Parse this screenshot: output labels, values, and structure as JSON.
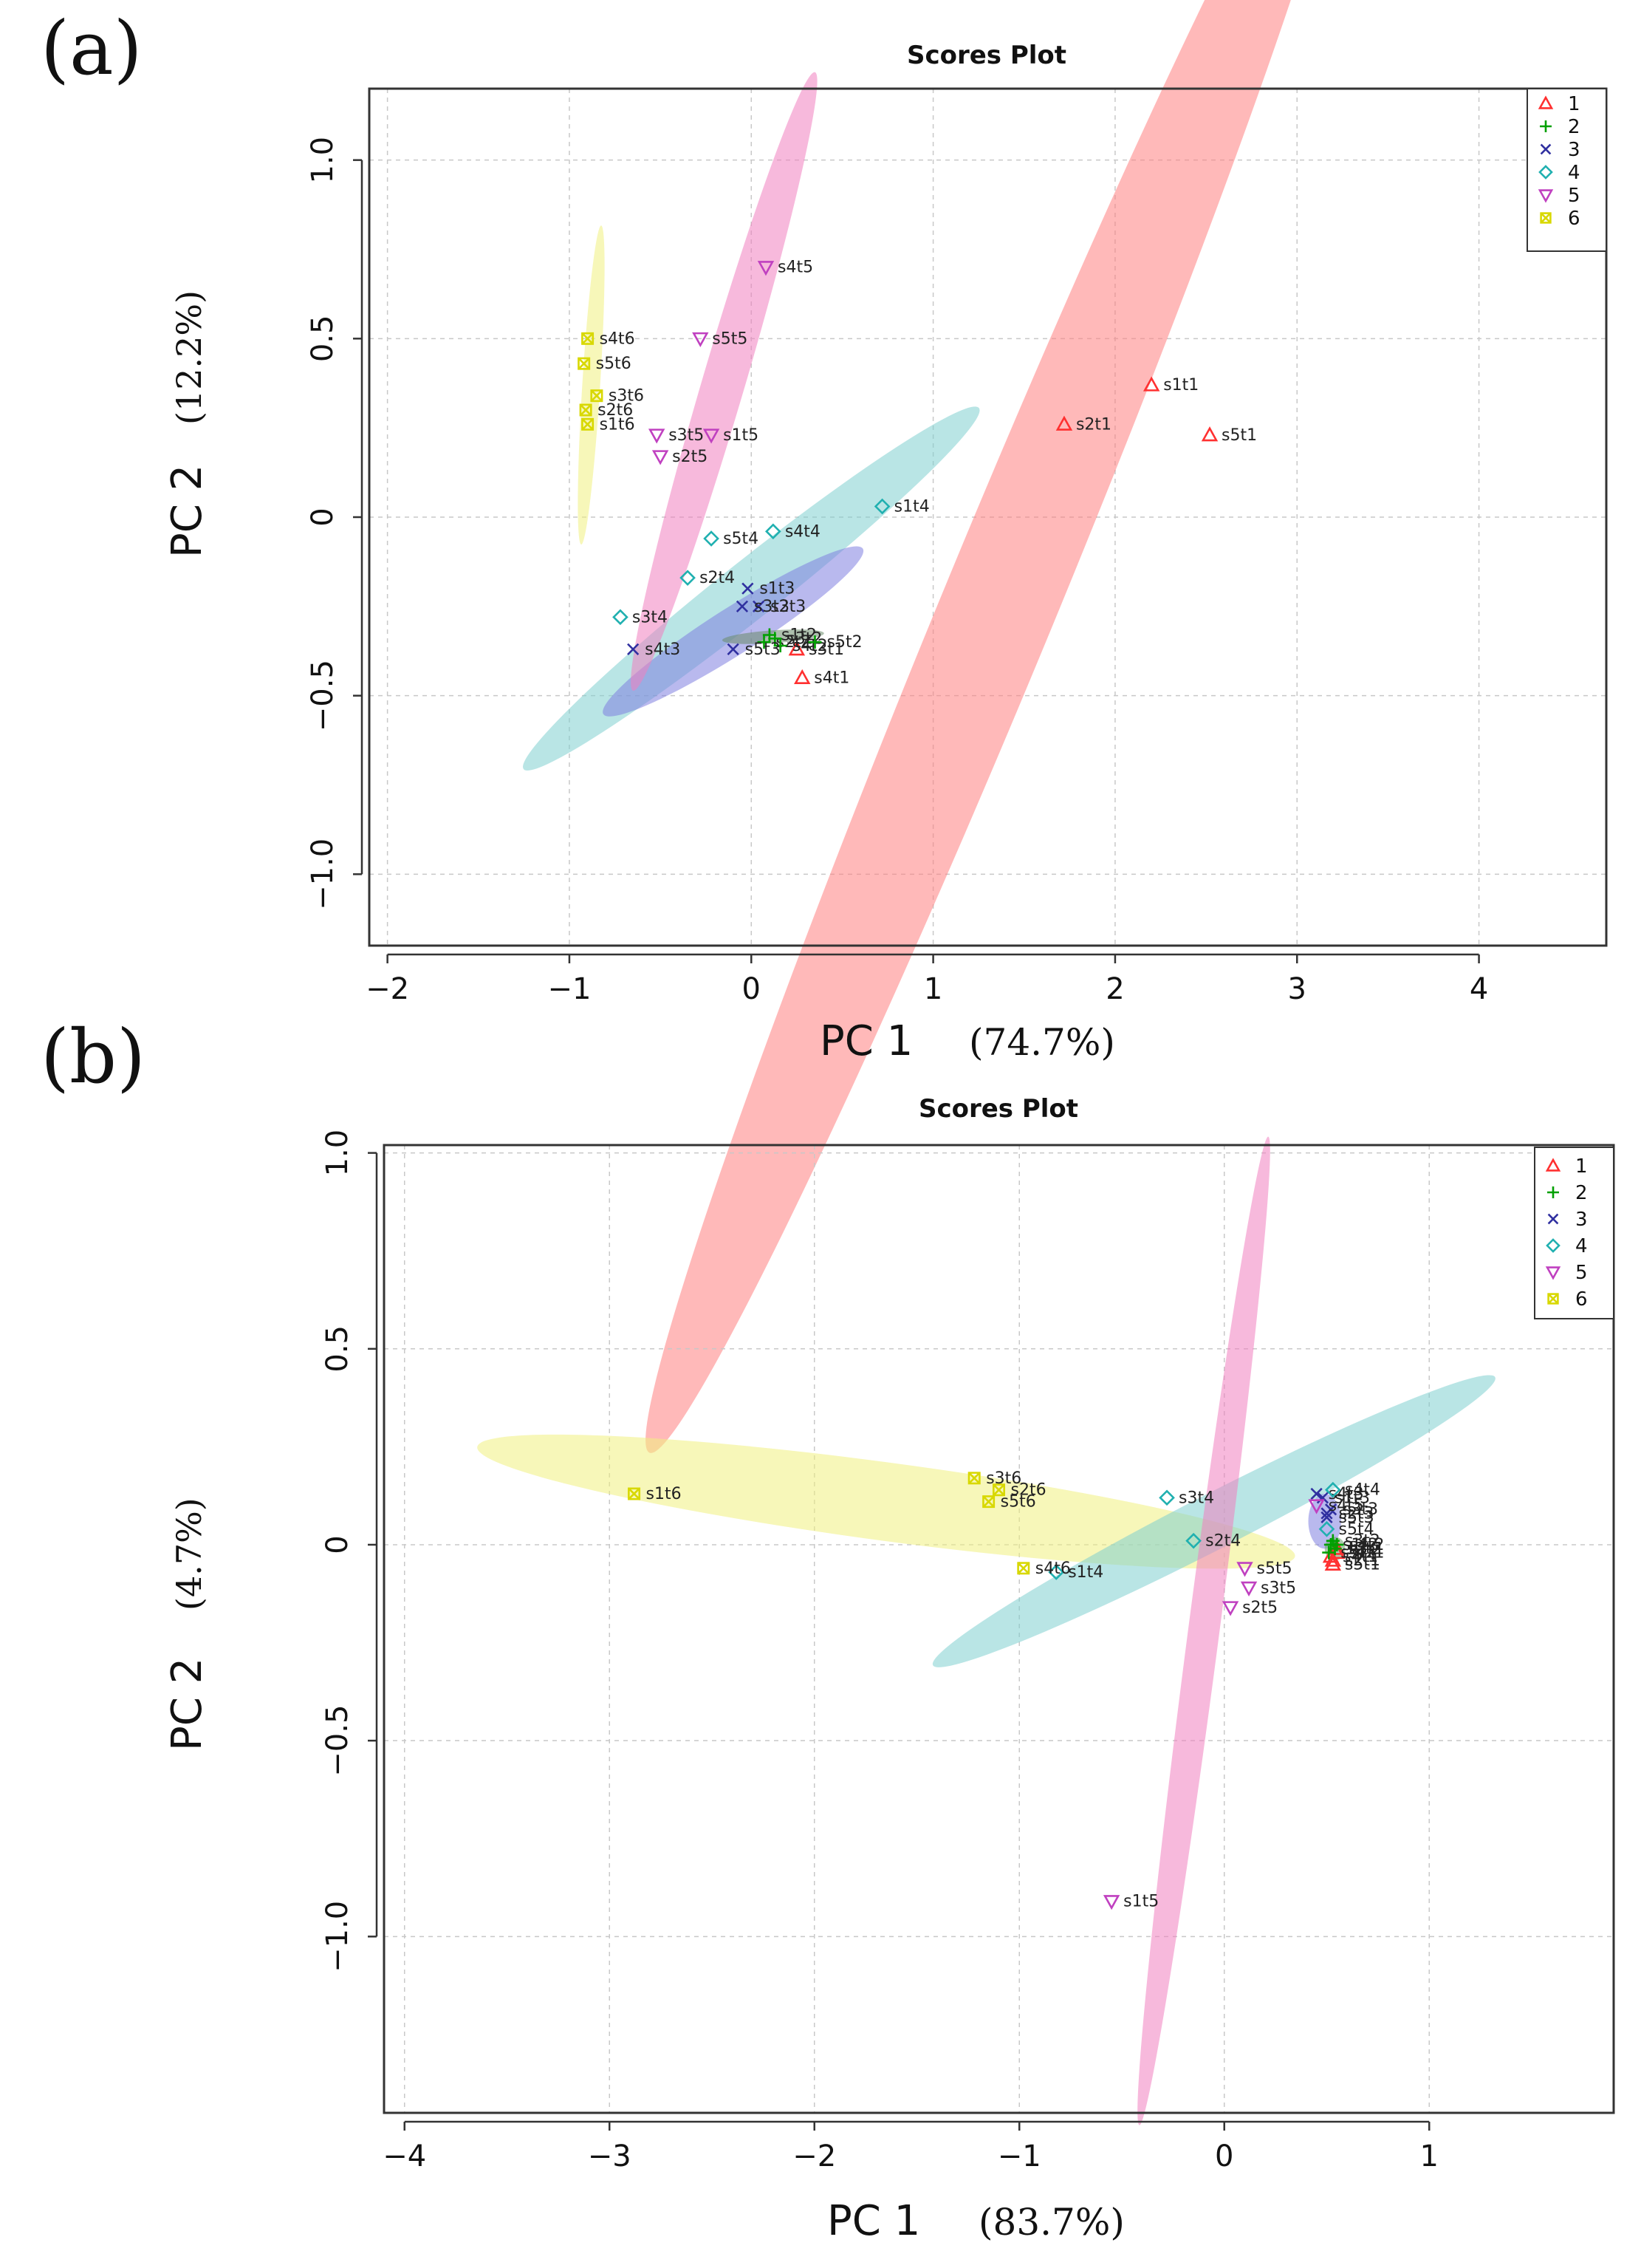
{
  "chart_data": [
    {
      "panel_label": "(a)",
      "type": "scatter",
      "title": "Scores Plot",
      "xlabel": "PC 1",
      "xlabel_pct": "(74.7%)",
      "ylabel": "PC 2",
      "ylabel_pct": "(12.2%)",
      "xlim": [
        -2.1,
        4.7
      ],
      "ylim": [
        -1.2,
        1.2
      ],
      "xticks": [
        -2,
        -1,
        0,
        1,
        2,
        3,
        4
      ],
      "yticks": [
        -1.0,
        -0.5,
        0,
        0.5,
        1.0
      ],
      "grid": true,
      "legend_position": "top-right",
      "groups": [
        {
          "name": "1",
          "color": "#ff3030",
          "marker": "triangle-up"
        },
        {
          "name": "2",
          "color": "#00a000",
          "marker": "plus"
        },
        {
          "name": "3",
          "color": "#3030a0",
          "marker": "x"
        },
        {
          "name": "4",
          "color": "#20b0b0",
          "marker": "diamond"
        },
        {
          "name": "5",
          "color": "#c040c0",
          "marker": "triangle-down"
        },
        {
          "name": "6",
          "color": "#d8d800",
          "marker": "square-x"
        }
      ],
      "ellipses": [
        {
          "group": "1",
          "color": "#ff8080",
          "cx": 1.36,
          "cy": -0.25,
          "rx": 3.05,
          "ry": 0.16,
          "angle_deg": 51
        },
        {
          "group": "4",
          "color": "#7fd0d0",
          "cx": 0.0,
          "cy": -0.2,
          "rx": 1.35,
          "ry": 0.08,
          "angle_deg": 22
        },
        {
          "group": "3",
          "color": "#8080e0",
          "cx": -0.1,
          "cy": -0.32,
          "rx": 0.75,
          "ry": 0.065,
          "angle_deg": 18
        },
        {
          "group": "5",
          "color": "#f080c0",
          "cx": -0.15,
          "cy": 0.38,
          "rx": 1.0,
          "ry": 0.06,
          "angle_deg": 60
        },
        {
          "group": "6",
          "color": "#f0f080",
          "cx": -0.88,
          "cy": 0.37,
          "rx": 0.45,
          "ry": 0.025,
          "angle_deg": 83
        },
        {
          "group": "2",
          "color": "#6a8a6a",
          "cx": 0.12,
          "cy": -0.335,
          "rx": 0.28,
          "ry": 0.018,
          "angle_deg": 2
        }
      ],
      "points": [
        {
          "group": "1",
          "label": "s1t1",
          "x": 2.2,
          "y": 0.37
        },
        {
          "group": "1",
          "label": "s2t1",
          "x": 1.72,
          "y": 0.26
        },
        {
          "group": "1",
          "label": "s5t1",
          "x": 2.52,
          "y": 0.23
        },
        {
          "group": "1",
          "label": "s4t1",
          "x": 0.28,
          "y": -0.45
        },
        {
          "group": "1",
          "label": "s3t1",
          "x": 0.25,
          "y": -0.37
        },
        {
          "group": "2",
          "label": "s1t2",
          "x": 0.1,
          "y": -0.33
        },
        {
          "group": "2",
          "label": "s2t2",
          "x": 0.07,
          "y": -0.35
        },
        {
          "group": "2",
          "label": "s3t2",
          "x": 0.13,
          "y": -0.34
        },
        {
          "group": "2",
          "label": "s4t2",
          "x": 0.16,
          "y": -0.36
        },
        {
          "group": "2",
          "label": "s5t2",
          "x": 0.35,
          "y": -0.35
        },
        {
          "group": "3",
          "label": "s1t3",
          "x": -0.02,
          "y": -0.2
        },
        {
          "group": "3",
          "label": "s2t3",
          "x": 0.04,
          "y": -0.25
        },
        {
          "group": "3",
          "label": "s3t3",
          "x": -0.05,
          "y": -0.25
        },
        {
          "group": "3",
          "label": "s4t3",
          "x": -0.65,
          "y": -0.37
        },
        {
          "group": "3",
          "label": "s5t3",
          "x": -0.1,
          "y": -0.37
        },
        {
          "group": "4",
          "label": "s1t4",
          "x": 0.72,
          "y": 0.03
        },
        {
          "group": "4",
          "label": "s2t4",
          "x": -0.35,
          "y": -0.17
        },
        {
          "group": "4",
          "label": "s3t4",
          "x": -0.72,
          "y": -0.28
        },
        {
          "group": "4",
          "label": "s4t4",
          "x": 0.12,
          "y": -0.04
        },
        {
          "group": "4",
          "label": "s5t4",
          "x": -0.22,
          "y": -0.06
        },
        {
          "group": "5",
          "label": "s1t5",
          "x": -0.22,
          "y": 0.23
        },
        {
          "group": "5",
          "label": "s2t5",
          "x": -0.5,
          "y": 0.17
        },
        {
          "group": "5",
          "label": "s3t5",
          "x": -0.52,
          "y": 0.23
        },
        {
          "group": "5",
          "label": "s4t5",
          "x": 0.08,
          "y": 0.7
        },
        {
          "group": "5",
          "label": "s5t5",
          "x": -0.28,
          "y": 0.5
        },
        {
          "group": "6",
          "label": "s1t6",
          "x": -0.9,
          "y": 0.26
        },
        {
          "group": "6",
          "label": "s2t6",
          "x": -0.91,
          "y": 0.3
        },
        {
          "group": "6",
          "label": "s3t6",
          "x": -0.85,
          "y": 0.34
        },
        {
          "group": "6",
          "label": "s4t6",
          "x": -0.9,
          "y": 0.5
        },
        {
          "group": "6",
          "label": "s5t6",
          "x": -0.92,
          "y": 0.43
        }
      ]
    },
    {
      "panel_label": "(b)",
      "type": "scatter",
      "title": "Scores Plot",
      "xlabel": "PC 1",
      "xlabel_pct": "(83.7%)",
      "ylabel": "PC 2",
      "ylabel_pct": "(4.7%)",
      "xlim": [
        -4.1,
        1.9
      ],
      "ylim": [
        -1.45,
        1.02
      ],
      "xticks": [
        -4,
        -3,
        -2,
        -1,
        0,
        1
      ],
      "yticks": [
        -1.0,
        -0.5,
        0,
        0.5,
        1.0
      ],
      "grid": true,
      "legend_position": "top-right",
      "groups": [
        {
          "name": "1",
          "color": "#ff3030",
          "marker": "triangle-up"
        },
        {
          "name": "2",
          "color": "#00a000",
          "marker": "plus"
        },
        {
          "name": "3",
          "color": "#3030a0",
          "marker": "x"
        },
        {
          "name": "4",
          "color": "#20b0b0",
          "marker": "diamond"
        },
        {
          "name": "5",
          "color": "#c040c0",
          "marker": "triangle-down"
        },
        {
          "name": "6",
          "color": "#d8d800",
          "marker": "square-x"
        }
      ],
      "ellipses": [
        {
          "group": "6",
          "color": "#f0f080",
          "cx": -1.65,
          "cy": 0.11,
          "rx": 2.0,
          "ry": 0.1,
          "angle_deg": -4
        },
        {
          "group": "4",
          "color": "#7fd0d0",
          "cx": -0.05,
          "cy": 0.06,
          "rx": 1.42,
          "ry": 0.07,
          "angle_deg": 15
        },
        {
          "group": "5",
          "color": "#f080c0",
          "cx": -0.1,
          "cy": -0.22,
          "rx": 1.3,
          "ry": 0.04,
          "angle_deg": 76
        },
        {
          "group": "3",
          "color": "#8080e0",
          "cx": 0.49,
          "cy": 0.06,
          "rx": 0.08,
          "ry": 0.07,
          "angle_deg": 0
        },
        {
          "group": "2",
          "color": "#6aa06a",
          "cx": 0.54,
          "cy": -0.01,
          "rx": 0.05,
          "ry": 0.03,
          "angle_deg": 0
        }
      ],
      "points": [
        {
          "group": "1",
          "label": "s1t1",
          "x": 0.55,
          "y": -0.02
        },
        {
          "group": "1",
          "label": "s2t1",
          "x": 0.53,
          "y": -0.04
        },
        {
          "group": "1",
          "label": "s3t1",
          "x": 0.55,
          "y": -0.01
        },
        {
          "group": "1",
          "label": "s4t1",
          "x": 0.52,
          "y": -0.03
        },
        {
          "group": "1",
          "label": "s5t1",
          "x": 0.53,
          "y": -0.05
        },
        {
          "group": "2",
          "label": "s1t2",
          "x": 0.52,
          "y": 0.0
        },
        {
          "group": "2",
          "label": "s2t2",
          "x": 0.54,
          "y": -0.01
        },
        {
          "group": "2",
          "label": "s3t2",
          "x": 0.53,
          "y": 0.01
        },
        {
          "group": "2",
          "label": "s4t2",
          "x": 0.55,
          "y": 0.0
        },
        {
          "group": "2",
          "label": "s5t2",
          "x": 0.51,
          "y": -0.02
        },
        {
          "group": "3",
          "label": "s1t3",
          "x": 0.48,
          "y": 0.12
        },
        {
          "group": "3",
          "label": "s2t3",
          "x": 0.5,
          "y": 0.08
        },
        {
          "group": "3",
          "label": "s3t3",
          "x": 0.52,
          "y": 0.09
        },
        {
          "group": "3",
          "label": "s4t3",
          "x": 0.45,
          "y": 0.13
        },
        {
          "group": "3",
          "label": "s5t3",
          "x": 0.5,
          "y": 0.07
        },
        {
          "group": "4",
          "label": "s1t4",
          "x": -0.82,
          "y": -0.07
        },
        {
          "group": "4",
          "label": "s2t4",
          "x": -0.15,
          "y": 0.01
        },
        {
          "group": "4",
          "label": "s3t4",
          "x": -0.28,
          "y": 0.12
        },
        {
          "group": "4",
          "label": "s4t4",
          "x": 0.53,
          "y": 0.14
        },
        {
          "group": "4",
          "label": "s5t4",
          "x": 0.5,
          "y": 0.04
        },
        {
          "group": "5",
          "label": "s1t5",
          "x": -0.55,
          "y": -0.91
        },
        {
          "group": "5",
          "label": "s2t5",
          "x": 0.03,
          "y": -0.16
        },
        {
          "group": "5",
          "label": "s3t5",
          "x": 0.12,
          "y": -0.11
        },
        {
          "group": "5",
          "label": "s4t5",
          "x": 0.45,
          "y": 0.1
        },
        {
          "group": "5",
          "label": "s5t5",
          "x": 0.1,
          "y": -0.06
        },
        {
          "group": "6",
          "label": "s1t6",
          "x": -2.88,
          "y": 0.13
        },
        {
          "group": "6",
          "label": "s2t6",
          "x": -1.1,
          "y": 0.14
        },
        {
          "group": "6",
          "label": "s3t6",
          "x": -1.22,
          "y": 0.17
        },
        {
          "group": "6",
          "label": "s4t6",
          "x": -0.98,
          "y": -0.06
        },
        {
          "group": "6",
          "label": "s5t6",
          "x": -1.15,
          "y": 0.11
        }
      ]
    }
  ]
}
